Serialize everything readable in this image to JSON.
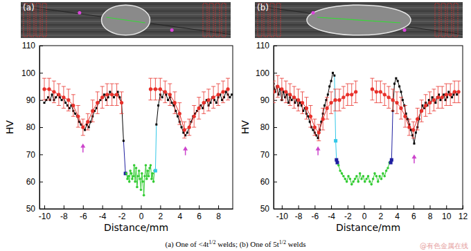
{
  "caption": [
    {
      "text": "(a) One of <4t"
    },
    {
      "text": "1/2",
      "sup": true
    },
    {
      "text": " welds; (b) One of 5t"
    },
    {
      "text": "1/2",
      "sup": true
    },
    {
      "text": " welds"
    }
  ],
  "watermark": "@有色金属在线",
  "chart_data": [
    {
      "type": "line",
      "panel_label": "(a)",
      "xlabel": "Distance/mm",
      "ylabel": "HV",
      "xlim": [
        -10.5,
        9.5
      ],
      "xticks": [
        -10,
        -8,
        -6,
        -4,
        -2,
        0,
        2,
        4,
        6,
        8
      ],
      "ylim": [
        50,
        110
      ],
      "yticks": [
        50,
        60,
        70,
        80,
        90,
        100,
        110
      ],
      "series": [
        {
          "color": "#000000",
          "marker": "square",
          "x": [
            -10,
            -9.8,
            -9.6,
            -9.4,
            -9.2,
            -9,
            -8.8,
            -8.6,
            -8.4,
            -8.2,
            -8,
            -7.8,
            -7.6,
            -7.4,
            -7.2,
            -7,
            -6.8,
            -6.6,
            -6.4,
            -6.2,
            -6,
            -5.8,
            -5.6,
            -5.4,
            -5.2,
            -5,
            -4.8,
            -4.6,
            -4.4,
            -4.2,
            -4,
            -3.8,
            -3.6,
            -3.4,
            -3.2,
            -3,
            -2.8,
            -2.6,
            -2.4,
            -2.2,
            -2,
            -1.8
          ],
          "values": [
            89,
            90,
            91,
            90,
            92,
            90,
            91,
            92,
            91,
            90,
            91,
            89,
            88,
            87,
            88,
            86,
            85,
            84,
            82,
            81,
            80,
            79,
            81,
            80,
            82,
            84,
            86,
            87,
            89,
            90,
            91,
            92,
            90,
            91,
            93,
            92,
            91,
            92,
            93,
            91,
            89,
            75
          ]
        },
        {
          "color": "#1f1fa0",
          "marker": "square",
          "x": [
            -1.6
          ],
          "values": [
            63
          ]
        },
        {
          "color": "#33cc33",
          "marker": "circle",
          "x": [
            -1.5,
            -1.4,
            -1.3,
            -1.2,
            -1.1,
            -1,
            -0.9,
            -0.8,
            -0.7,
            -0.6,
            -0.5,
            -0.4,
            -0.3,
            -0.2,
            -0.1,
            0,
            0.1,
            0.2,
            0.3,
            0.4,
            0.5,
            0.6,
            0.7,
            0.8,
            0.9,
            1,
            1.1,
            1.2,
            1.3,
            1.4
          ],
          "values": [
            63,
            61,
            62,
            60,
            64,
            63,
            61,
            62,
            66,
            60,
            65,
            58,
            62,
            64,
            61,
            57,
            63,
            60,
            55,
            62,
            66,
            61,
            64,
            62,
            65,
            66,
            61,
            63,
            60,
            64
          ]
        },
        {
          "color": "#33c8e8",
          "marker": "square",
          "x": [
            1.5
          ],
          "values": [
            64
          ]
        },
        {
          "color": "#000000",
          "marker": "square",
          "x": [
            1.6,
            1.8,
            2,
            2.2,
            2.4,
            2.6,
            2.8,
            3,
            3.2,
            3.4,
            3.6,
            3.8,
            4,
            4.2,
            4.4,
            4.6,
            4.8,
            5,
            5.2,
            5.4,
            5.6,
            5.8,
            6,
            6.2,
            6.4,
            6.6,
            6.8,
            7,
            7.2,
            7.4,
            7.6,
            7.8,
            8,
            8.2,
            8.4,
            8.6,
            8.8,
            9,
            9.2,
            9.4
          ],
          "values": [
            81,
            88,
            92,
            91,
            93,
            92,
            90,
            91,
            89,
            88,
            86,
            84,
            82,
            80,
            78,
            77,
            78,
            80,
            82,
            84,
            85,
            86,
            87,
            88,
            87,
            89,
            90,
            88,
            89,
            91,
            90,
            89,
            91,
            92,
            90,
            91,
            93,
            92,
            91,
            92
          ]
        },
        {
          "color": "#e8302a",
          "marker": "circle",
          "x": [
            -10,
            -9.5,
            -9,
            -8.5,
            -8,
            -7.5,
            -7,
            -6.5,
            -6,
            -5.5,
            -5,
            -4.5,
            -4,
            -3.5,
            -3,
            -2.5,
            -2,
            -1.5,
            -1,
            -0.5,
            0,
            0.5,
            1,
            1.5,
            2,
            2.5,
            3,
            3.5,
            4,
            4.5,
            5,
            5.5,
            6,
            6.5,
            7,
            7.5,
            8,
            8.5,
            9
          ],
          "values": [
            94,
            94,
            93,
            92,
            91,
            90,
            88,
            84,
            80,
            82,
            86,
            89,
            91,
            92,
            92,
            92,
            89,
            null,
            null,
            null,
            null,
            null,
            94,
            94,
            94,
            93,
            92,
            89,
            85,
            79,
            80,
            84,
            87,
            89,
            90,
            91,
            92,
            93,
            94
          ],
          "error": [
            4,
            4,
            4,
            4,
            4,
            4,
            4,
            4,
            3,
            3,
            4,
            4,
            4,
            4,
            4,
            4,
            4,
            null,
            null,
            null,
            null,
            null,
            4,
            4,
            4,
            4,
            4,
            4,
            4,
            3,
            3,
            4,
            4,
            4,
            4,
            4,
            4,
            4,
            4
          ]
        }
      ],
      "arrows": {
        "x": [
          -6,
          4.6
        ],
        "y": [
          74,
          73
        ]
      }
    },
    {
      "type": "line",
      "panel_label": "(b)",
      "xlabel": "Distance/mm",
      "ylabel": "HV",
      "xlim": [
        -11,
        12
      ],
      "xticks": [
        -10,
        -8,
        -6,
        -4,
        -2,
        0,
        2,
        4,
        6,
        8,
        10,
        12
      ],
      "ylim": [
        50,
        110
      ],
      "yticks": [
        50,
        60,
        70,
        80,
        90,
        100,
        110
      ],
      "series": [
        {
          "color": "#000000",
          "marker": "square",
          "x": [
            -11,
            -10.8,
            -10.6,
            -10.4,
            -10.2,
            -10,
            -9.8,
            -9.6,
            -9.4,
            -9.2,
            -9,
            -8.8,
            -8.6,
            -8.4,
            -8.2,
            -8,
            -7.8,
            -7.6,
            -7.4,
            -7.2,
            -7,
            -6.8,
            -6.6,
            -6.4,
            -6.2,
            -6,
            -5.8,
            -5.6,
            -5.4,
            -5.2,
            -5,
            -4.8,
            -4.6,
            -4.4,
            -4.2,
            -4,
            -3.8,
            -3.6
          ],
          "values": [
            96,
            93,
            95,
            92,
            94,
            90,
            93,
            91,
            92,
            89,
            91,
            90,
            91,
            89,
            90,
            88,
            89,
            88,
            86,
            87,
            85,
            84,
            82,
            80,
            79,
            78,
            77,
            76,
            79,
            82,
            85,
            88,
            90,
            92,
            95,
            97,
            100,
            99
          ]
        },
        {
          "color": "#33c8e8",
          "marker": "square",
          "x": [
            -3.45
          ],
          "values": [
            75
          ]
        },
        {
          "color": "#1f1fa0",
          "marker": "square",
          "x": [
            -3.35,
            -3.25
          ],
          "values": [
            68,
            67
          ]
        },
        {
          "color": "#33cc33",
          "marker": "circle",
          "x": [
            -3.1,
            -2.9,
            -2.7,
            -2.5,
            -2.3,
            -2.1,
            -1.9,
            -1.7,
            -1.5,
            -1.3,
            -1.1,
            -0.9,
            -0.7,
            -0.5,
            -0.3,
            -0.1,
            0.1,
            0.3,
            0.5,
            0.7,
            0.9,
            1.1,
            1.3,
            1.5,
            1.7,
            1.9,
            2.1,
            2.3,
            2.5,
            2.7,
            2.9,
            3.1
          ],
          "values": [
            66,
            64,
            63,
            62,
            61,
            60,
            62,
            61,
            59,
            60,
            61,
            62,
            60,
            63,
            61,
            62,
            60,
            61,
            62,
            60,
            59,
            61,
            63,
            62,
            60,
            62,
            61,
            63,
            62,
            64,
            65,
            67
          ]
        },
        {
          "color": "#1f1fa0",
          "marker": "square",
          "x": [
            3.25,
            3.35
          ],
          "values": [
            67,
            68
          ]
        },
        {
          "color": "#000000",
          "marker": "square",
          "x": [
            3.5,
            3.7,
            3.9,
            4.1,
            4.3,
            4.5,
            4.7,
            4.9,
            5.1,
            5.3,
            5.5,
            5.7,
            5.9,
            6.1,
            6.3,
            6.5,
            6.7,
            6.9,
            7.1,
            7.3,
            7.5,
            7.7,
            7.9,
            8.1,
            8.3,
            8.5,
            8.7,
            8.9,
            9.1,
            9.3,
            9.5,
            9.7,
            9.9,
            10.1,
            10.3,
            10.5,
            10.7,
            10.9,
            11.1,
            11.3,
            11.5
          ],
          "values": [
            86,
            96,
            98,
            97,
            95,
            93,
            90,
            88,
            85,
            83,
            81,
            79,
            77,
            74,
            78,
            80,
            83,
            86,
            88,
            87,
            89,
            88,
            90,
            89,
            91,
            90,
            89,
            91,
            92,
            90,
            91,
            92,
            90,
            91,
            93,
            92,
            91,
            92,
            93,
            92,
            93
          ]
        },
        {
          "color": "#e8302a",
          "marker": "circle",
          "x": [
            -11,
            -10.5,
            -10,
            -9.5,
            -9,
            -8.5,
            -8,
            -7.5,
            -7,
            -6.5,
            -6,
            -5.5,
            -5,
            -4.5,
            -4,
            -3.5,
            -3,
            -2.5,
            -2,
            -1.5,
            -1,
            -0.5,
            0,
            0.5,
            1,
            1.5,
            2,
            2.5,
            3,
            3.5,
            4,
            4.5,
            5,
            5.5,
            6,
            6.5,
            7,
            7.5,
            8,
            8.5,
            9,
            9.5,
            10,
            10.5,
            11,
            11.5
          ],
          "values": [
            93,
            95,
            94,
            93,
            92,
            91,
            90,
            89,
            87,
            84,
            80,
            78,
            83,
            87,
            89,
            90,
            90,
            91,
            92,
            92,
            93,
            null,
            null,
            null,
            94,
            93,
            93,
            92,
            91,
            90,
            89,
            87,
            84,
            80,
            79,
            83,
            86,
            88,
            89,
            90,
            91,
            91,
            92,
            92,
            93,
            93
          ],
          "error": [
            4,
            4,
            4,
            4,
            4,
            4,
            4,
            4,
            4,
            4,
            3,
            3,
            4,
            4,
            4,
            4,
            4,
            4,
            4,
            4,
            4,
            null,
            null,
            null,
            4,
            4,
            4,
            4,
            4,
            4,
            4,
            4,
            4,
            3,
            3,
            4,
            4,
            4,
            4,
            4,
            4,
            4,
            4,
            4,
            4,
            4
          ]
        }
      ],
      "arrows": {
        "x": [
          -5.6,
          6.1
        ],
        "y": [
          73,
          70
        ]
      }
    }
  ]
}
